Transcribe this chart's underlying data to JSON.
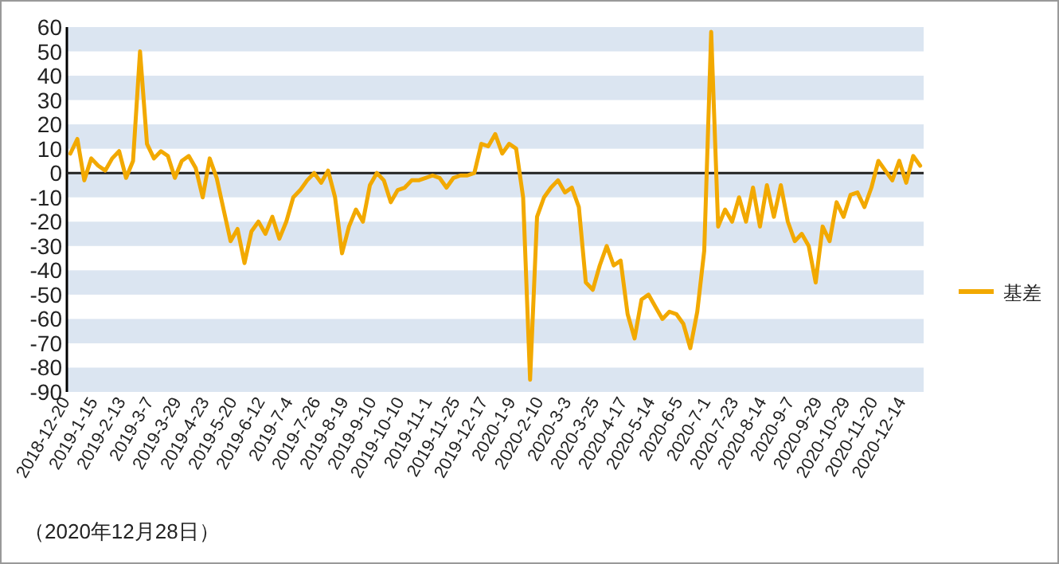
{
  "chart_data": {
    "type": "line",
    "categories": [
      "2018-12-20",
      null,
      null,
      null,
      "2019-1-15",
      null,
      null,
      null,
      "2019-2-13",
      null,
      null,
      null,
      "2019-3-7",
      null,
      null,
      null,
      "2019-3-29",
      null,
      null,
      null,
      "2019-4-23",
      null,
      null,
      null,
      "2019-5-20",
      null,
      null,
      null,
      "2019-6-12",
      null,
      null,
      null,
      "2019-7-4",
      null,
      null,
      null,
      "2019-7-26",
      null,
      null,
      null,
      "2019-8-19",
      null,
      null,
      null,
      "2019-9-10",
      null,
      null,
      null,
      "2019-10-10",
      null,
      null,
      null,
      "2019-11-1",
      null,
      null,
      null,
      "2019-11-25",
      null,
      null,
      null,
      "2019-12-17",
      null,
      null,
      null,
      "2020-1-9",
      null,
      null,
      null,
      "2020-2-10",
      null,
      null,
      null,
      "2020-3-3",
      null,
      null,
      null,
      "2020-3-25",
      null,
      null,
      null,
      "2020-4-17",
      null,
      null,
      null,
      "2020-5-14",
      null,
      null,
      null,
      "2020-6-5",
      null,
      null,
      null,
      "2020-7-1",
      null,
      null,
      null,
      "2020-7-23",
      null,
      null,
      null,
      "2020-8-14",
      null,
      null,
      null,
      "2020-9-7",
      null,
      null,
      null,
      "2020-9-29",
      null,
      null,
      null,
      "2020-10-29",
      null,
      null,
      null,
      "2020-11-20",
      null,
      null,
      null,
      "2020-12-14",
      null,
      null
    ],
    "series": [
      {
        "name": "基差",
        "color": "#f2a900",
        "values": [
          8,
          14,
          -3,
          6,
          3,
          1,
          6,
          9,
          -2,
          5,
          50,
          12,
          6,
          9,
          7,
          -2,
          5,
          7,
          2,
          -10,
          6,
          -2,
          -15,
          -28,
          -23,
          -37,
          -24,
          -20,
          -25,
          -18,
          -27,
          -20,
          -10,
          -7,
          -3,
          0,
          -4,
          1,
          -10,
          -33,
          -22,
          -15,
          -20,
          -5,
          0,
          -3,
          -12,
          -7,
          -6,
          -3,
          -3,
          -2,
          -1,
          -2,
          -6,
          -2,
          -1,
          -1,
          0,
          12,
          11,
          16,
          8,
          12,
          10,
          -10,
          -85,
          -18,
          -10,
          -6,
          -3,
          -8,
          -6,
          -14,
          -45,
          -48,
          -38,
          -30,
          -38,
          -36,
          -58,
          -68,
          -52,
          -50,
          -55,
          -60,
          -57,
          -58,
          -62,
          -72,
          -57,
          -32,
          58,
          -22,
          -15,
          -20,
          -10,
          -20,
          -6,
          -22,
          -5,
          -18,
          -5,
          -20,
          -28,
          -25,
          -30,
          -45,
          -22,
          -28,
          -12,
          -18,
          -9,
          -8,
          -14,
          -6,
          5,
          1,
          -3,
          5,
          -4,
          7,
          3
        ]
      }
    ],
    "ylim": [
      -90,
      60
    ],
    "yticks": [
      -90,
      -80,
      -70,
      -60,
      -50,
      -40,
      -30,
      -20,
      -10,
      0,
      10,
      20,
      30,
      40,
      50,
      60
    ],
    "grid": "y",
    "legend": "right",
    "annotations": [
      "（2020年12月28日）"
    ]
  }
}
